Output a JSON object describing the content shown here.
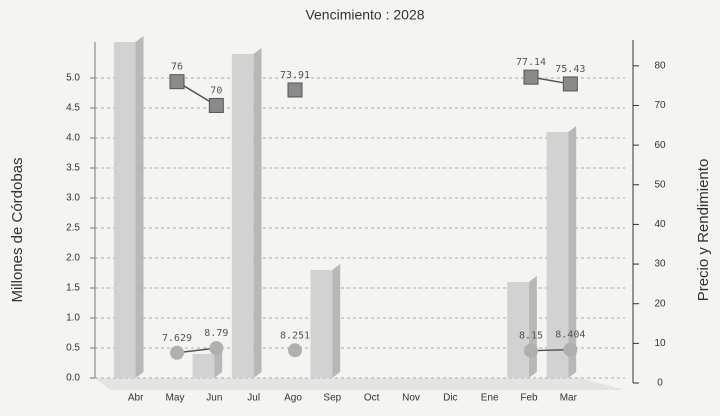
{
  "chart_data": {
    "type": "bar",
    "title": "Vencimiento : 2028",
    "ylabel": "Millones de Córdobas",
    "y2label": "Precio y Rendimiento",
    "categories": [
      "Abr",
      "May",
      "Jun",
      "Jul",
      "Ago",
      "Sep",
      "Oct",
      "Nov",
      "Dic",
      "Ene",
      "Feb",
      "Mar"
    ],
    "series": [
      {
        "type": "bar",
        "color": "#d2d2d2",
        "values": [
          5.6,
          0,
          0.4,
          5.4,
          0,
          1.8,
          0,
          0,
          0,
          0,
          1.6,
          4.1
        ]
      },
      {
        "type": "line",
        "marker": "square",
        "axis": "y2",
        "color": "#8a8a8a",
        "values": [
          null,
          76,
          70,
          null,
          73.91,
          null,
          null,
          null,
          null,
          null,
          77.14,
          75.43
        ]
      },
      {
        "type": "line",
        "marker": "circle",
        "axis": "y2",
        "color": "#b0b0b0",
        "values": [
          null,
          7.629,
          8.79,
          null,
          8.251,
          null,
          null,
          null,
          null,
          null,
          8.15,
          8.404
        ]
      }
    ],
    "ylim": [
      0,
      5.6
    ],
    "yticks": [
      {
        "value": 0,
        "label": "0.0"
      },
      0.5,
      {
        "value": 1,
        "label": "1.0"
      },
      1.5,
      {
        "value": 2,
        "label": "2.0"
      },
      2.5,
      {
        "value": 3,
        "label": "3.0"
      },
      3.5,
      {
        "value": 4,
        "label": "4.0"
      },
      4.5,
      {
        "value": 5,
        "label": "5.0"
      }
    ],
    "y2lim": [
      0,
      85
    ],
    "y2ticks": [
      0,
      10,
      20,
      30,
      40,
      50,
      60,
      70,
      80
    ],
    "grid": true
  }
}
